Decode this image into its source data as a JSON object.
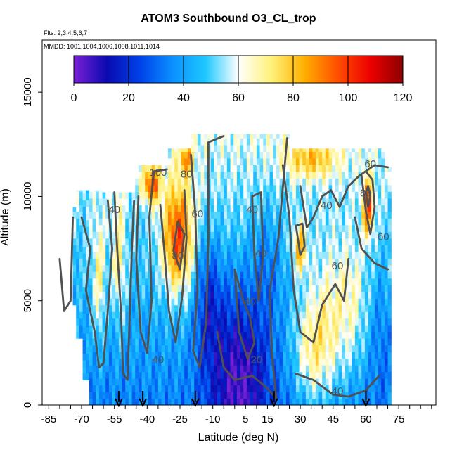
{
  "chart_data": {
    "type": "heatmap",
    "title": "ATOM3 Southbound O3_CL_trop",
    "flights_text": "Flts: 2,3,4,5,6,7",
    "mmdd_text": "MMDD: 1001,1004,1006,1008,1011,1014",
    "xlabel": "Latitude (deg N)",
    "ylabel": "Altitude (m)",
    "xlim": [
      -88,
      92
    ],
    "ylim": [
      0,
      17500
    ],
    "xticks": [
      -85,
      -70,
      -55,
      -40,
      -25,
      -10,
      5,
      15,
      30,
      45,
      60,
      75
    ],
    "yticks": [
      0,
      5000,
      10000,
      15000
    ],
    "colorbar": {
      "min": 0,
      "max": 120,
      "ticks": [
        0,
        20,
        40,
        60,
        80,
        100,
        120
      ],
      "colors": [
        "#7a1fd6",
        "#0a0ab0",
        "#0040e8",
        "#0a90ff",
        "#1ec8ff",
        "#ffffff",
        "#fff27a",
        "#ffb000",
        "#ff5000",
        "#ee0000",
        "#8b0000"
      ]
    },
    "arrows_lat": [
      -53,
      -42,
      -18,
      18,
      60
    ],
    "contour_levels": [
      20,
      40,
      60,
      80,
      100
    ],
    "contour_labels": [
      {
        "text": "100",
        "lat": -35,
        "alt": 11000
      },
      {
        "text": "80",
        "lat": -22,
        "alt": 10900
      },
      {
        "text": "60",
        "lat": 62,
        "alt": 11400
      },
      {
        "text": "80",
        "lat": -26,
        "alt": 7000
      },
      {
        "text": "40",
        "lat": 8,
        "alt": 9200
      },
      {
        "text": "40",
        "lat": 12,
        "alt": 7100
      },
      {
        "text": "40",
        "lat": 42,
        "alt": 9400
      },
      {
        "text": "60",
        "lat": 47,
        "alt": 6500
      },
      {
        "text": "60",
        "lat": 68,
        "alt": 7900
      },
      {
        "text": "40",
        "lat": 7,
        "alt": 4800
      },
      {
        "text": "20",
        "lat": 10,
        "alt": 2000
      },
      {
        "text": "40",
        "lat": -35,
        "alt": 2000
      },
      {
        "text": "40",
        "lat": 47,
        "alt": 500
      },
      {
        "text": "80",
        "lat": 60,
        "alt": 10000
      },
      {
        "text": "60",
        "lat": -17,
        "alt": 9000
      },
      {
        "text": "40",
        "lat": -55,
        "alt": 9200
      }
    ],
    "grid": false,
    "legend": "colorbar-top"
  }
}
